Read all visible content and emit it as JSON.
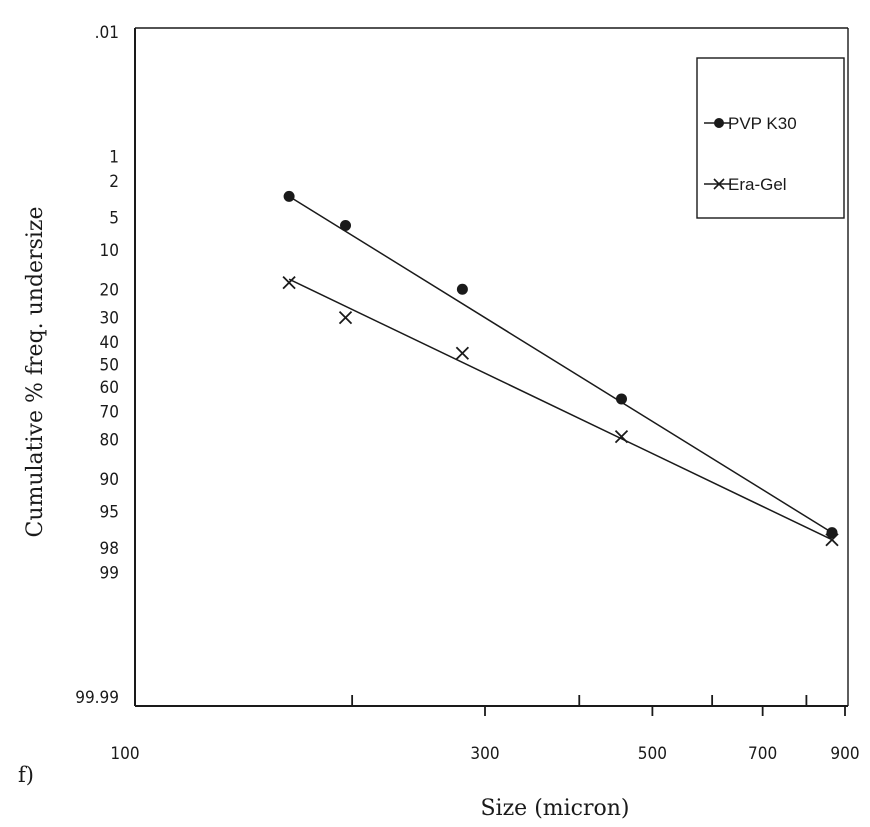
{
  "panel_label": "f)",
  "chart_data": {
    "type": "line",
    "title": "",
    "xlabel": "Size (micron)",
    "ylabel": "Cumulative % freq. undersize",
    "x_scale": "log",
    "y_scale": "probability",
    "xlim": [
      100,
      900
    ],
    "ylim": [
      0.01,
      99.99
    ],
    "x_ticks": [
      {
        "value": 100,
        "label": "100"
      },
      {
        "value": 300,
        "label": "300"
      },
      {
        "value": 500,
        "label": "500"
      },
      {
        "value": 700,
        "label": "700"
      },
      {
        "value": 900,
        "label": "900"
      }
    ],
    "x_minor_ticks": [
      200,
      400,
      600,
      800
    ],
    "y_ticks": [
      {
        "value": 0.01,
        "label": ".01"
      },
      {
        "value": 1,
        "label": "1"
      },
      {
        "value": 2,
        "label": "2"
      },
      {
        "value": 5,
        "label": "5"
      },
      {
        "value": 10,
        "label": "10"
      },
      {
        "value": 20,
        "label": "20"
      },
      {
        "value": 30,
        "label": "30"
      },
      {
        "value": 40,
        "label": "40"
      },
      {
        "value": 50,
        "label": "50"
      },
      {
        "value": 60,
        "label": "60"
      },
      {
        "value": 70,
        "label": "70"
      },
      {
        "value": 80,
        "label": "80"
      },
      {
        "value": 90,
        "label": "90"
      },
      {
        "value": 95,
        "label": "95"
      },
      {
        "value": 98,
        "label": "98"
      },
      {
        "value": 99,
        "label": "99"
      },
      {
        "value": 99.99,
        "label": "99.99"
      }
    ],
    "grid": false,
    "legend_position": "top-right",
    "series": [
      {
        "name": "PVP K30",
        "marker": "filled-circle",
        "color": "#1a1a1a",
        "x": [
          165,
          196,
          280,
          455,
          865
        ],
        "y": [
          3,
          6,
          20,
          65,
          97
        ]
      },
      {
        "name": "Era-Gel",
        "marker": "x",
        "color": "#1a1a1a",
        "x": [
          165,
          196,
          280,
          455,
          865
        ],
        "y": [
          18,
          30,
          45,
          79,
          97.5
        ]
      }
    ],
    "fit_lines": [
      {
        "series": "PVP K30",
        "x": [
          165,
          865
        ],
        "y": [
          3,
          97
        ]
      },
      {
        "series": "Era-Gel",
        "x": [
          165,
          865
        ],
        "y": [
          17,
          97.5
        ]
      }
    ]
  }
}
